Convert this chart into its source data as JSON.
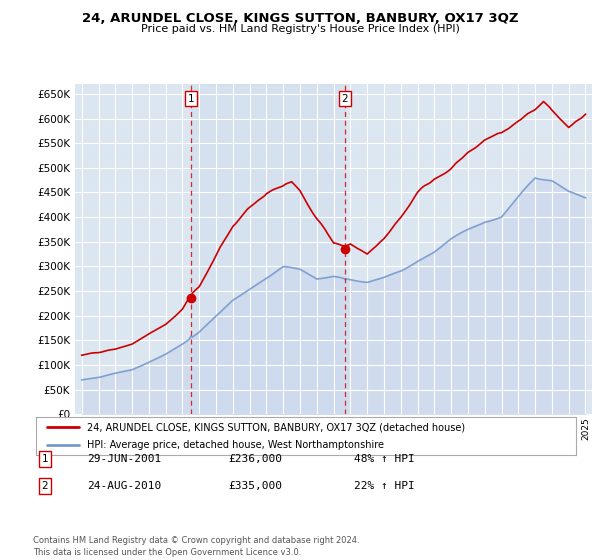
{
  "title": "24, ARUNDEL CLOSE, KINGS SUTTON, BANBURY, OX17 3QZ",
  "subtitle": "Price paid vs. HM Land Registry's House Price Index (HPI)",
  "legend_line1": "24, ARUNDEL CLOSE, KINGS SUTTON, BANBURY, OX17 3QZ (detached house)",
  "legend_line2": "HPI: Average price, detached house, West Northamptonshire",
  "transaction1_label": "1",
  "transaction1_date": "29-JUN-2001",
  "transaction1_price": "£236,000",
  "transaction1_hpi": "48% ↑ HPI",
  "transaction2_label": "2",
  "transaction2_date": "24-AUG-2010",
  "transaction2_price": "£335,000",
  "transaction2_hpi": "22% ↑ HPI",
  "footer": "Contains HM Land Registry data © Crown copyright and database right 2024.\nThis data is licensed under the Open Government Licence v3.0.",
  "red_color": "#cc0000",
  "blue_color": "#7799cc",
  "blue_fill_color": "#dce6f1",
  "background_color": "#dce6f1",
  "grid_color": "#ffffff",
  "transaction1_year": 2001.5,
  "transaction2_year": 2010.67,
  "transaction1_value_red": 236000,
  "transaction1_value_blue": 159000,
  "transaction2_value_red": 335000,
  "transaction2_value_blue": 274000,
  "ylim_min": 0,
  "ylim_max": 670000,
  "yticks": [
    0,
    50000,
    100000,
    150000,
    200000,
    250000,
    300000,
    350000,
    400000,
    450000,
    500000,
    550000,
    600000,
    650000
  ]
}
